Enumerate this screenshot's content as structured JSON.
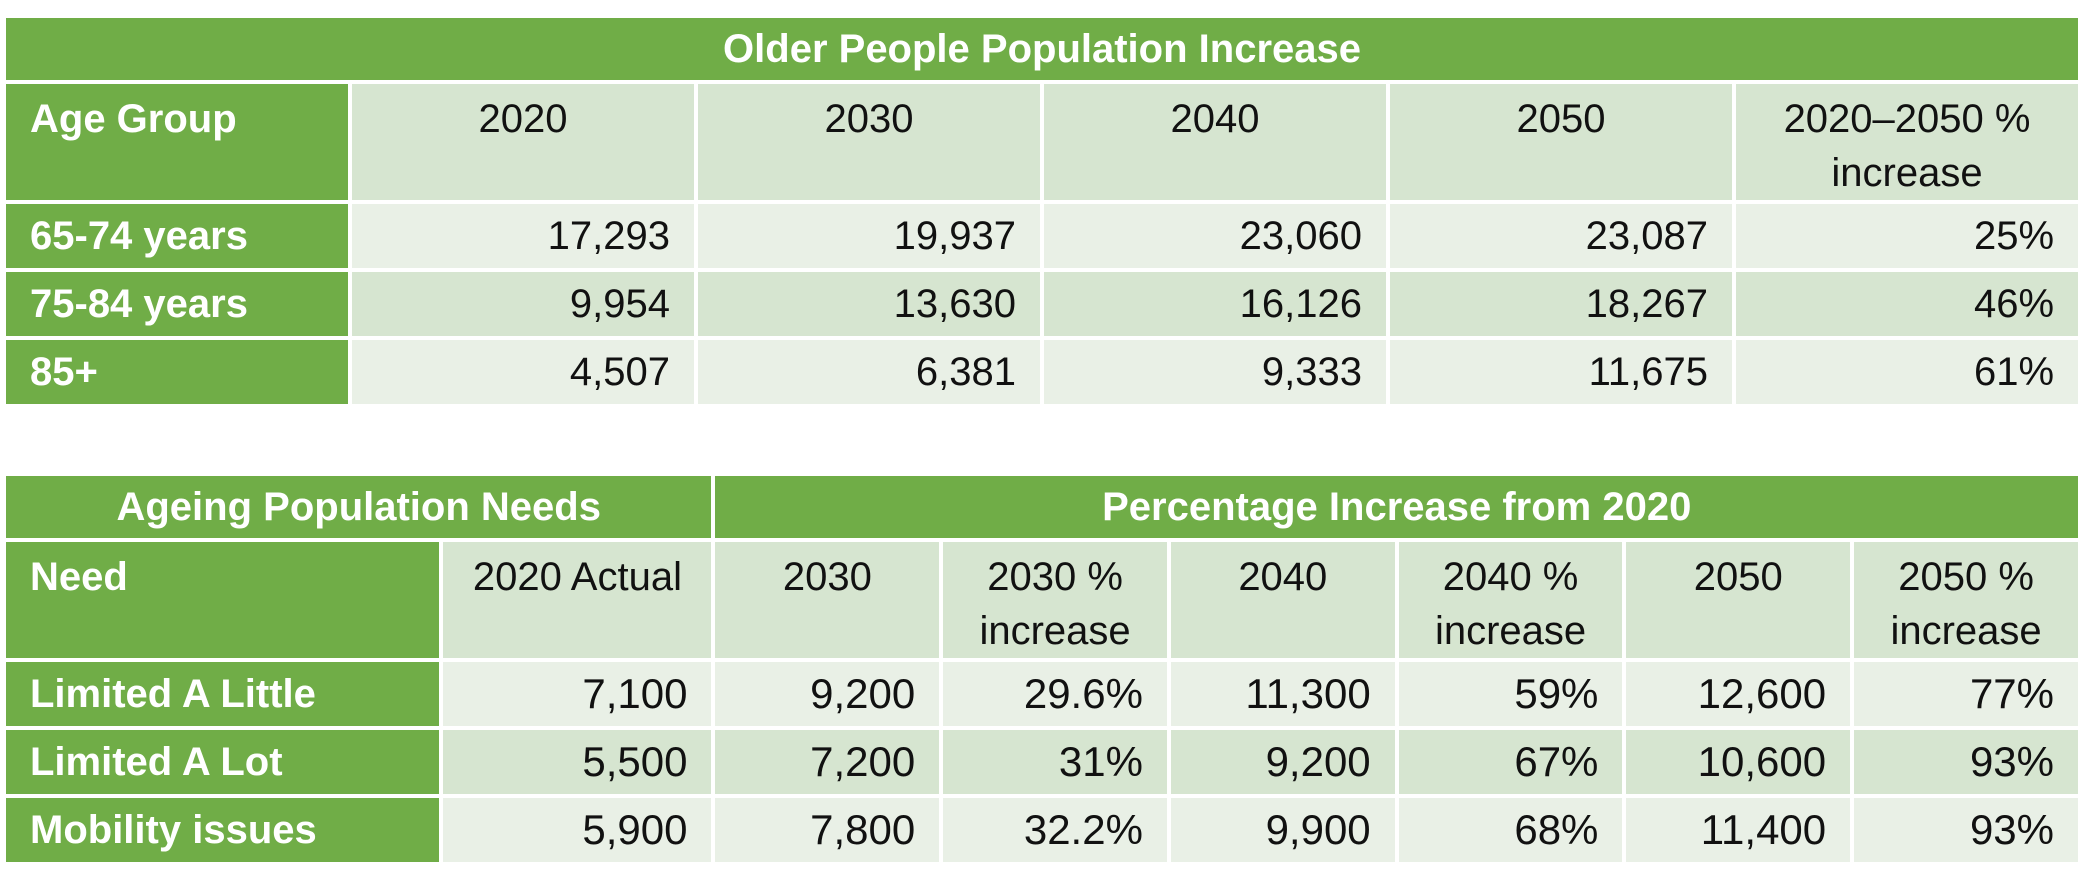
{
  "table1": {
    "title": "Older People Population Increase",
    "headers": [
      "Age Group",
      "2020",
      "2030",
      "2040",
      "2050",
      "2020–2050 % increase"
    ],
    "rows": [
      {
        "label": "65-74 years",
        "values": [
          "17,293",
          "19,937",
          "23,060",
          "23,087",
          "25%"
        ]
      },
      {
        "label": "75-84 years",
        "values": [
          "9,954",
          "13,630",
          "16,126",
          "18,267",
          "46%"
        ]
      },
      {
        "label": "85+",
        "values": [
          "4,507",
          "6,381",
          "9,333",
          "11,675",
          "61%"
        ]
      }
    ]
  },
  "table2": {
    "title_left": "Ageing Population Needs",
    "title_right": "Percentage Increase from 2020",
    "headers": [
      "Need",
      "2020 Actual",
      "2030",
      "2030 % increase",
      "2040",
      "2040 % increase",
      "2050",
      "2050 % increase"
    ],
    "rows": [
      {
        "label": "Limited A Little",
        "values": [
          "7,100",
          "9,200",
          "29.6%",
          "11,300",
          "59%",
          "12,600",
          "77%"
        ]
      },
      {
        "label": "Limited A Lot",
        "values": [
          "5,500",
          "7,200",
          "31%",
          "9,200",
          "67%",
          "10,600",
          "93%"
        ]
      },
      {
        "label": "Mobility issues",
        "values": [
          "5,900",
          "7,800",
          "32.2%",
          "9,900",
          "68%",
          "11,400",
          "93%"
        ]
      }
    ]
  },
  "colors": {
    "header_green": "#70ad47",
    "light_band": "#d6e5d0",
    "lighter_band": "#e9f0e6"
  }
}
